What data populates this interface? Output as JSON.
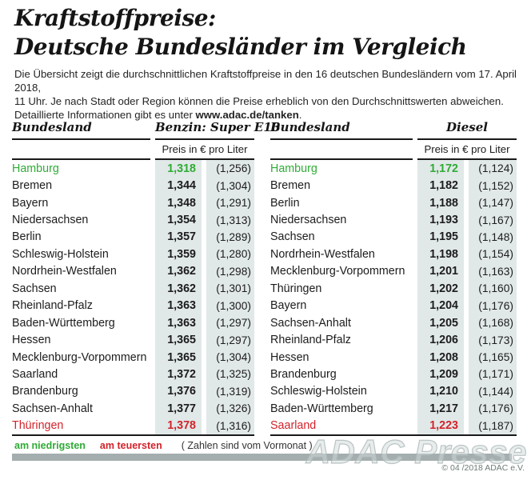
{
  "title": {
    "line1": "Kraftstoffpreise:",
    "line2": "Deutsche Bundesländer im Vergleich"
  },
  "intro": {
    "line1": "Die Übersicht zeigt die durchschnittlichen Kraftstoffpreise in den 16 deutschen Bundesländern vom 17. April 2018,",
    "line2": "11 Uhr. Je nach Stadt oder Region können die Preise erheblich von den Durchschnittswerten abweichen.",
    "line3_before": "Detaillierte Informationen gibt es unter ",
    "line3_url": "www.adac.de/tanken",
    "line3_after": "."
  },
  "tables": [
    {
      "bundesland_header": "Bundesland",
      "fuel_header": "Benzin: Super E10",
      "price_header": "Preis in € pro Liter",
      "rows": [
        {
          "name": "Hamburg",
          "price": "1,318",
          "prev": "(1,256)",
          "highlight": "green"
        },
        {
          "name": "Bremen",
          "price": "1,344",
          "prev": "(1,304)"
        },
        {
          "name": "Bayern",
          "price": "1,348",
          "prev": "(1,291)"
        },
        {
          "name": "Niedersachsen",
          "price": "1,354",
          "prev": "(1,313)"
        },
        {
          "name": "Berlin",
          "price": "1,357",
          "prev": "(1,289)"
        },
        {
          "name": "Schleswig-Holstein",
          "price": "1,359",
          "prev": "(1,280)"
        },
        {
          "name": "Nordrhein-Westfalen",
          "price": "1,362",
          "prev": "(1,298)"
        },
        {
          "name": "Sachsen",
          "price": "1,362",
          "prev": "(1,301)"
        },
        {
          "name": "Rheinland-Pfalz",
          "price": "1,363",
          "prev": "(1,300)"
        },
        {
          "name": "Baden-Württemberg",
          "price": "1,363",
          "prev": "(1,297)"
        },
        {
          "name": "Hessen",
          "price": "1,365",
          "prev": "(1,297)"
        },
        {
          "name": "Mecklenburg-Vorpommern",
          "price": "1,365",
          "prev": "(1,304)"
        },
        {
          "name": "Saarland",
          "price": "1,372",
          "prev": "(1,325)"
        },
        {
          "name": "Brandenburg",
          "price": "1,376",
          "prev": "(1,319)"
        },
        {
          "name": "Sachsen-Anhalt",
          "price": "1,377",
          "prev": "(1,326)"
        },
        {
          "name": "Thüringen",
          "price": "1,378",
          "prev": "(1,316)",
          "highlight": "red"
        }
      ]
    },
    {
      "bundesland_header": "Bundesland",
      "fuel_header": "Diesel",
      "price_header": "Preis in € pro Liter",
      "rows": [
        {
          "name": "Hamburg",
          "price": "1,172",
          "prev": "(1,124)",
          "highlight": "green"
        },
        {
          "name": "Bremen",
          "price": "1,182",
          "prev": "(1,152)"
        },
        {
          "name": "Berlin",
          "price": "1,188",
          "prev": "(1,147)"
        },
        {
          "name": "Niedersachsen",
          "price": "1,193",
          "prev": "(1,167)"
        },
        {
          "name": "Sachsen",
          "price": "1,195",
          "prev": "(1,148)"
        },
        {
          "name": "Nordrhein-Westfalen",
          "price": "1,198",
          "prev": "(1,154)"
        },
        {
          "name": "Mecklenburg-Vorpommern",
          "price": "1,201",
          "prev": "(1,163)"
        },
        {
          "name": "Thüringen",
          "price": "1,202",
          "prev": "(1,160)"
        },
        {
          "name": "Bayern",
          "price": "1,204",
          "prev": "(1,176)"
        },
        {
          "name": "Sachsen-Anhalt",
          "price": "1,205",
          "prev": "(1,168)"
        },
        {
          "name": "Rheinland-Pfalz",
          "price": "1,206",
          "prev": "(1,173)"
        },
        {
          "name": "Hessen",
          "price": "1,208",
          "prev": "(1,165)"
        },
        {
          "name": "Brandenburg",
          "price": "1,209",
          "prev": "(1,171)"
        },
        {
          "name": "Schleswig-Holstein",
          "price": "1,210",
          "prev": "(1,144)"
        },
        {
          "name": "Baden-Württemberg",
          "price": "1,217",
          "prev": "(1,176)"
        },
        {
          "name": "Saarland",
          "price": "1,223",
          "prev": "(1,187)",
          "highlight": "red"
        }
      ]
    }
  ],
  "legend": {
    "lowest": "am niedrigsten",
    "highest": "am teuersten",
    "note": "( Zahlen sind vom Vormonat )"
  },
  "footer": {
    "watermark": "ADAC Presse",
    "copyright": "© 04 /2018 ADAC e.V."
  },
  "colors": {
    "green": "#2fab35",
    "red": "#d2232a",
    "col_bg": "#e1e8e8",
    "bar": "#a5aeae"
  }
}
